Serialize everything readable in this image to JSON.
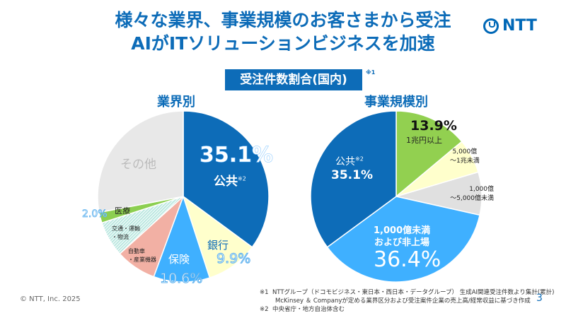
{
  "title": {
    "line1": "様々な業界、事業規模のお客さまから受注",
    "line2": "AIがITソリューションビジネスを加速"
  },
  "logo": {
    "text": "NTT"
  },
  "badge": {
    "label": "受注件数割合(国内)",
    "note": "※1"
  },
  "chart_data": [
    {
      "type": "pie",
      "title": "業界別",
      "start": "top",
      "direction": "clockwise",
      "slices": [
        {
          "label": "公共",
          "note": "※2",
          "value": 35.1,
          "display": "35.1%",
          "color": "#0d6cb8"
        },
        {
          "label": "銀行",
          "value": 9.9,
          "display": "9.9%",
          "color": "#ffffcc"
        },
        {
          "label": "保険",
          "value": 10.6,
          "display": "10.6%",
          "color": "#3fb0ff"
        },
        {
          "label": "自動車・産業機器",
          "value": 7.7,
          "color": "#f2b0a4"
        },
        {
          "label": "交通・運輸・物流",
          "value": 6.7,
          "color": "#c9eee8",
          "pattern": "hatched"
        },
        {
          "label": "医療",
          "value": 2.0,
          "display": "2.0%",
          "color": "#8ccf50"
        },
        {
          "label": "その他",
          "value": 28.0,
          "color": "#e8e8e8"
        }
      ]
    },
    {
      "type": "pie",
      "title": "事業規模別",
      "start": "top",
      "direction": "clockwise",
      "slices": [
        {
          "label": "1兆円以上",
          "value": 13.9,
          "display": "13.9%",
          "color": "#92d050"
        },
        {
          "label": "5,000億〜1兆未満",
          "value": 6.5,
          "color": "#ffffcc"
        },
        {
          "label": "1,000億〜5,000億未満",
          "value": 8.1,
          "color": "#e0e0e0"
        },
        {
          "label": "1,000億未満および非上場",
          "value": 36.4,
          "display": "36.4%",
          "color": "#3fb0ff"
        },
        {
          "label": "公共",
          "note": "※2",
          "value": 35.1,
          "display": "35.1%",
          "color": "#0d6cb8"
        }
      ]
    }
  ],
  "labels": {
    "l_public_pct": "35.1%",
    "l_public": "公共",
    "l_public_note": "※2",
    "l_bank": "銀行",
    "l_bank_pct": "9.9%",
    "l_ins": "保険",
    "l_ins_pct": "10.6%",
    "l_auto1": "自動車",
    "l_auto2": "・産業機器",
    "l_trans1": "交通・運輸",
    "l_trans2": "・物流",
    "l_med": "医療",
    "l_med_pct": "2.0%",
    "l_other": "その他",
    "r_1t_pct": "13.9%",
    "r_1t": "1兆円以上",
    "r_5k1": "5,000億",
    "r_5k2": "〜1兆未満",
    "r_1k1": "1,000億",
    "r_1k2": "〜5,000億未満",
    "r_small1": "1,000億未満",
    "r_small2": "および非上場",
    "r_small_pct": "36.4%",
    "r_public": "公共",
    "r_public_note": "※2",
    "r_public_pct": "35.1%"
  },
  "footer": {
    "note1_mark": "※1",
    "note1_line1": "NTTグループ（ドコモビジネス・東日本・西日本・データグループ） 生成AI関連受注件数より集計(累計)",
    "note1_line2": "McKinsey ＆ Companyが定める業界区分および受注案件企業の売上高/経常収益に基づき作成",
    "note2_mark": "※2",
    "note2": "中央省庁・地方自治体含む",
    "copyright": "© NTT, Inc.  2025",
    "page": "3"
  }
}
